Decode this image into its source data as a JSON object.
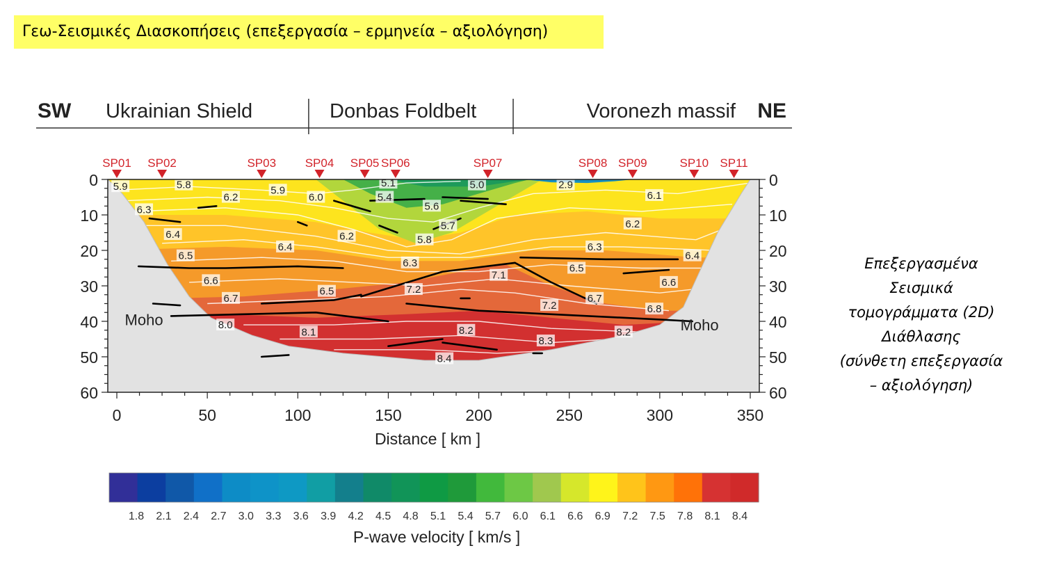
{
  "slide": {
    "title": "Γεω-Σεισμικές Διασκοπήσεις (επεξεργασία – ερμηνεία – αξιολόγηση)",
    "side_note_lines": [
      "Επεξεργασμένα",
      "Σεισμικά",
      "τομογράμματα (2D)",
      "Διάθλασης",
      "(σύνθετη επεξεργασία",
      "– αξιολόγηση)"
    ]
  },
  "chart_data": {
    "type": "heatmap",
    "header": {
      "left": "SW",
      "right": "NE",
      "regions": [
        "Ukrainian Shield",
        "Donbas Foldbelt",
        "Voronezh massif"
      ],
      "region_boundaries_km": [
        106,
        219
      ]
    },
    "xlabel": "Distance  [ km ]",
    "xlim": [
      -5,
      355
    ],
    "ylim": [
      0,
      60
    ],
    "x_ticks": [
      0,
      50,
      100,
      150,
      200,
      250,
      300,
      350
    ],
    "y_ticks": [
      0,
      10,
      20,
      30,
      40,
      50,
      60
    ],
    "shot_points": [
      {
        "label": "SP01",
        "x": 0
      },
      {
        "label": "SP02",
        "x": 25
      },
      {
        "label": "SP03",
        "x": 80
      },
      {
        "label": "SP04",
        "x": 112
      },
      {
        "label": "SP05",
        "x": 137
      },
      {
        "label": "SP06",
        "x": 154
      },
      {
        "label": "SP07",
        "x": 205
      },
      {
        "label": "SP08",
        "x": 263
      },
      {
        "label": "SP09",
        "x": 285
      },
      {
        "label": "SP10",
        "x": 319
      },
      {
        "label": "SP11",
        "x": 341
      }
    ],
    "moho_labels": [
      {
        "text": "Moho",
        "x": 15,
        "depth": 39.5
      },
      {
        "text": "Moho",
        "x": 322,
        "depth": 41
      }
    ],
    "velocity_labels": [
      {
        "v": "5.9",
        "x": 2,
        "d": 2
      },
      {
        "v": "5.8",
        "x": 37,
        "d": 1.5
      },
      {
        "v": "5.9",
        "x": 89,
        "d": 3
      },
      {
        "v": "6.0",
        "x": 110,
        "d": 5
      },
      {
        "v": "5.1",
        "x": 150,
        "d": 1
      },
      {
        "v": "5.4",
        "x": 148,
        "d": 5
      },
      {
        "v": "5.0",
        "x": 199,
        "d": 1.5
      },
      {
        "v": "2.9",
        "x": 248,
        "d": 1.5
      },
      {
        "v": "6.2",
        "x": 63,
        "d": 5
      },
      {
        "v": "5.6",
        "x": 174,
        "d": 7.5
      },
      {
        "v": "6.1",
        "x": 297,
        "d": 4.5
      },
      {
        "v": "6.3",
        "x": 15,
        "d": 8.5
      },
      {
        "v": "5.7",
        "x": 183,
        "d": 13
      },
      {
        "v": "6.2",
        "x": 285,
        "d": 12.5
      },
      {
        "v": "6.4",
        "x": 31,
        "d": 15.5
      },
      {
        "v": "6.2",
        "x": 127,
        "d": 16
      },
      {
        "v": "5.8",
        "x": 170,
        "d": 17
      },
      {
        "v": "6.4",
        "x": 93,
        "d": 19
      },
      {
        "v": "6.3",
        "x": 264,
        "d": 19
      },
      {
        "v": "6.5",
        "x": 38,
        "d": 21.5
      },
      {
        "v": "6.4",
        "x": 318,
        "d": 21.5
      },
      {
        "v": "6.3",
        "x": 162,
        "d": 23.5
      },
      {
        "v": "6.5",
        "x": 254,
        "d": 25
      },
      {
        "v": "7.1",
        "x": 211,
        "d": 27
      },
      {
        "v": "6.6",
        "x": 52,
        "d": 28.5
      },
      {
        "v": "6.6",
        "x": 305,
        "d": 29
      },
      {
        "v": "6.5",
        "x": 116,
        "d": 31.5
      },
      {
        "v": "7.2",
        "x": 164,
        "d": 31
      },
      {
        "v": "6.7",
        "x": 63,
        "d": 33.5
      },
      {
        "v": "6.7",
        "x": 264,
        "d": 33.5
      },
      {
        "v": "7.2",
        "x": 239,
        "d": 35.5
      },
      {
        "v": "6.8",
        "x": 297,
        "d": 36.5
      },
      {
        "v": "8.0",
        "x": 60,
        "d": 41
      },
      {
        "v": "8.1",
        "x": 106,
        "d": 43
      },
      {
        "v": "8.2",
        "x": 193,
        "d": 42.5
      },
      {
        "v": "8.2",
        "x": 280,
        "d": 43
      },
      {
        "v": "8.3",
        "x": 237,
        "d": 45.5
      },
      {
        "v": "8.4",
        "x": 181,
        "d": 50.5
      }
    ],
    "colorbar": {
      "label": "P-wave velocity  [ km/s ]",
      "ticks": [
        "1.8",
        "2.1",
        "2.4",
        "2.7",
        "3.0",
        "3.3",
        "3.6",
        "3.9",
        "4.2",
        "4.5",
        "4.8",
        "5.1",
        "5.4",
        "5.7",
        "6.0",
        "6.1",
        "6.6",
        "6.9",
        "7.2",
        "7.5",
        "7.8",
        "8.1",
        "8.4"
      ],
      "colors": [
        "#312f98",
        "#0c3ea0",
        "#1058a8",
        "#1070c8",
        "#0d8cc6",
        "#0e93c8",
        "#0e99c4",
        "#119ea4",
        "#137f8c",
        "#108a68",
        "#119458",
        "#0f9a44",
        "#1f9a3a",
        "#41b93c",
        "#6dc845",
        "#a0c84e",
        "#d6e72b",
        "#fff41a",
        "#ffc41a",
        "#ff9812",
        "#ff7208",
        "#d63232",
        "#d02a2a"
      ]
    },
    "palette": {
      "background": "#e2e2e2",
      "contour_lines": "#ffffff",
      "reflectors": "#000000",
      "shot_marker": "#d2232a"
    }
  }
}
